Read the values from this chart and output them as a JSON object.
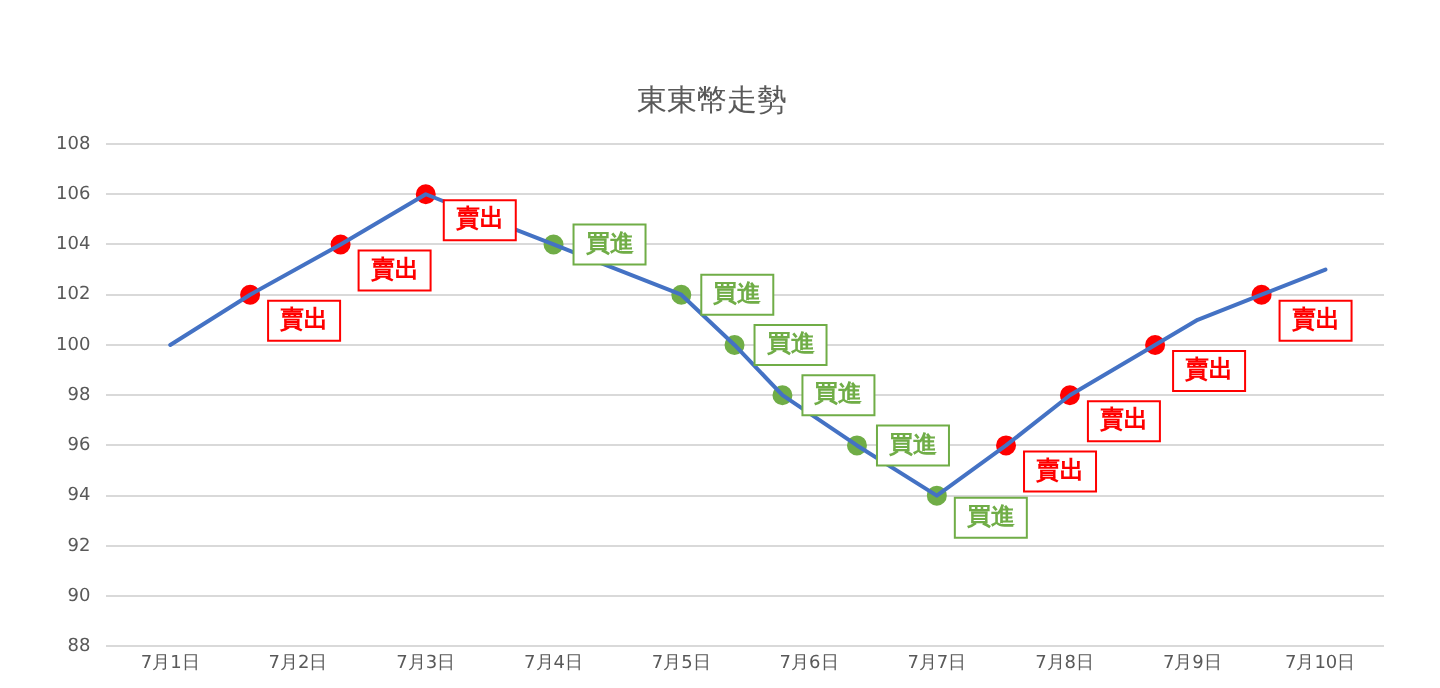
{
  "chart_data": {
    "type": "line",
    "title": "東東幣走勢",
    "xlim": [
      "--06-30T12:00",
      "--07-10T12:00"
    ],
    "xticks": [
      {
        "value": "--07-01",
        "label": "7月1日"
      },
      {
        "value": "--07-02",
        "label": "7月2日"
      },
      {
        "value": "--07-03",
        "label": "7月3日"
      },
      {
        "value": "--07-04",
        "label": "7月4日"
      },
      {
        "value": "--07-05",
        "label": "7月5日"
      },
      {
        "value": "--07-06",
        "label": "7月6日"
      },
      {
        "value": "--07-07",
        "label": "7月7日"
      },
      {
        "value": "--07-08",
        "label": "7月8日"
      },
      {
        "value": "--07-09",
        "label": "7月9日"
      },
      {
        "value": "--07-10",
        "label": "7月10日"
      }
    ],
    "ylim": [
      88,
      108
    ],
    "yticks": [
      88,
      90,
      92,
      94,
      96,
      98,
      100,
      102,
      104,
      106,
      108
    ],
    "grid": "y",
    "legend": false,
    "series": [
      {
        "color": "#4472c4",
        "marker": "none",
        "x": [
          "--07-01T00:00",
          "--07-01T15:00",
          "--07-02T08:00",
          "--07-03T00:00",
          "--07-04T00:00",
          "--07-05T00:00",
          "--07-05T10:00",
          "--07-05T19:00",
          "--07-06T09:00",
          "--07-07T00:00",
          "--07-07T13:00",
          "--07-08T01:00",
          "--07-08T17:00",
          "--07-09T01:00",
          "--07-09T13:00",
          "--07-10T01:00"
        ],
        "values": [
          100,
          102,
          104,
          106,
          104,
          102,
          100,
          98,
          96,
          94,
          96,
          98,
          100,
          101,
          102,
          103
        ]
      },
      {
        "type": "scatter",
        "color": "#ff0000",
        "marker": "circle",
        "x": [
          "--07-01T15:00",
          "--07-02T08:00",
          "--07-03T00:00",
          "--07-07T13:00",
          "--07-08T01:00",
          "--07-08T17:00",
          "--07-09T13:00"
        ],
        "values": [
          102,
          104,
          106,
          96,
          98,
          100,
          102
        ],
        "value_labels": [
          "賣出",
          "賣出",
          "賣出",
          "賣出",
          "賣出",
          "賣出",
          "賣出"
        ]
      },
      {
        "type": "scatter",
        "color": "#70ad47",
        "marker": "circle",
        "x": [
          "--07-04T00:00",
          "--07-05T00:00",
          "--07-05T10:00",
          "--07-05T19:00",
          "--07-06T09:00",
          "--07-07T00:00"
        ],
        "values": [
          104,
          102,
          100,
          98,
          96,
          94
        ],
        "value_labels": [
          "買進",
          "買進",
          "買進",
          "買進",
          "買進",
          "買進"
        ]
      }
    ]
  }
}
